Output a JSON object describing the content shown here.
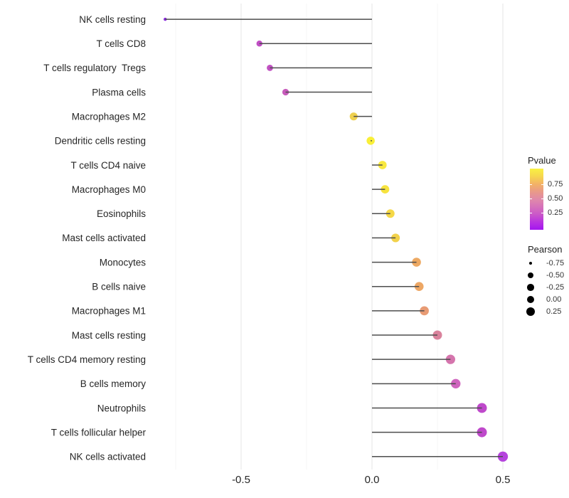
{
  "figure": {
    "background": "#ffffff",
    "panel": {
      "grid_major_color": "#e8e8e8",
      "grid_minor_color": "#f3f3f3"
    }
  },
  "chart_data": {
    "type": "scatter",
    "variant": "lollipop",
    "orientation": "horizontal",
    "title": "",
    "xlabel": "",
    "ylabel": "",
    "xlim": [
      -0.85,
      0.6
    ],
    "grid": "major+minor vertical",
    "legend_position": "right",
    "x_ticks": [
      {
        "value": -0.5,
        "label": "-0.5"
      },
      {
        "value": 0.0,
        "label": "0.0"
      },
      {
        "value": 0.5,
        "label": "0.5"
      }
    ],
    "x_minor_ticks": [
      -0.75,
      -0.25,
      0.25
    ],
    "categories": [
      "NK cells resting",
      "T cells CD8",
      "T cells regulatory  Tregs",
      "Plasma cells",
      "Macrophages M2",
      "Dendritic cells resting",
      "T cells CD4 naive",
      "Macrophages M0",
      "Eosinophils",
      "Mast cells activated",
      "Monocytes",
      "B cells naive",
      "Macrophages M1",
      "Mast cells resting",
      "T cells CD4 memory resting",
      "B cells memory",
      "Neutrophils",
      "T cells follicular helper",
      "NK cells activated"
    ],
    "series": [
      {
        "name": "Pearson",
        "values": [
          -0.79,
          -0.43,
          -0.39,
          -0.33,
          -0.07,
          -0.005,
          0.04,
          0.05,
          0.07,
          0.09,
          0.17,
          0.18,
          0.2,
          0.25,
          0.3,
          0.32,
          0.42,
          0.42,
          0.5
        ]
      }
    ],
    "point_colors": [
      "#8b2be0",
      "#c04ec4",
      "#c151c2",
      "#c75bbb",
      "#eed04f",
      "#f9ef38",
      "#f8e83e",
      "#f7e33e",
      "#f5d847",
      "#f2d24b",
      "#eda963",
      "#eda765",
      "#e89b74",
      "#d9829c",
      "#d575ad",
      "#cf64be",
      "#bf49cb",
      "#bf49cb",
      "#b544dd"
    ],
    "pvalues_approx_from_color": [
      0.01,
      0.22,
      0.23,
      0.28,
      0.82,
      0.97,
      0.93,
      0.9,
      0.85,
      0.82,
      0.66,
      0.65,
      0.6,
      0.47,
      0.42,
      0.33,
      0.2,
      0.2,
      0.1
    ],
    "stem_color": "#4d4d4d",
    "axis_text_color": "#262626"
  },
  "legend_pvalue": {
    "title": "Pvalue",
    "gradient_top_to_bottom": [
      "#f9f142",
      "#f6d74e",
      "#f3b266",
      "#e99a88",
      "#e08aa9",
      "#d672ba",
      "#ca57c9",
      "#b832e0",
      "#a316ef"
    ],
    "ticks": [
      {
        "t": 0.75,
        "label": "0.75"
      },
      {
        "t": 0.5,
        "label": "0.50"
      },
      {
        "t": 0.25,
        "label": "0.25"
      }
    ]
  },
  "legend_pearson": {
    "title": "Pearson",
    "entries": [
      {
        "label": "-0.75",
        "r": 2.3
      },
      {
        "label": "-0.50",
        "r": 4.0
      },
      {
        "label": "-0.25",
        "r": 4.8
      },
      {
        "label": "0.00",
        "r": 5.4
      },
      {
        "label": "0.25",
        "r": 6.1
      }
    ]
  }
}
